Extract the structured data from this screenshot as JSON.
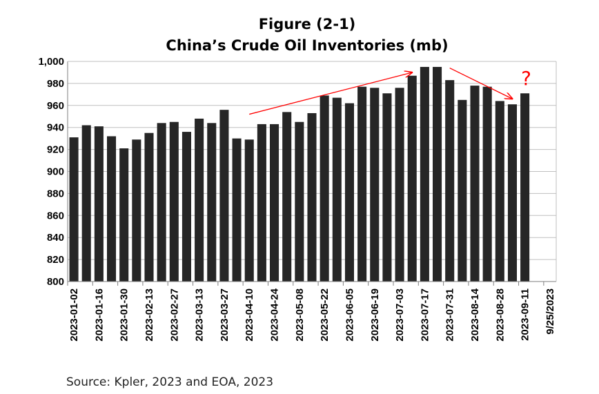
{
  "chart_data": {
    "type": "bar",
    "title": "Figure (2-1)",
    "subtitle": "China’s Crude Oil Inventories (mb)",
    "xlabel": "",
    "ylabel": "",
    "ylim": [
      800,
      1000
    ],
    "yticks": [
      800,
      820,
      840,
      860,
      880,
      900,
      920,
      940,
      960,
      980,
      1000
    ],
    "ytick_labels": [
      "800",
      "820",
      "840",
      "860",
      "880",
      "900",
      "920",
      "940",
      "960",
      "980",
      "1,000"
    ],
    "grid": true,
    "bar_color": "#262626",
    "annotation_color": "#ff0000",
    "categories": [
      "2023-01-02",
      "2023-01-09",
      "2023-01-16",
      "2023-01-23",
      "2023-01-30",
      "2023-02-06",
      "2023-02-13",
      "2023-02-20",
      "2023-02-27",
      "2023-03-06",
      "2023-03-13",
      "2023-03-20",
      "2023-03-27",
      "2023-04-03",
      "2023-04-10",
      "2023-04-17",
      "2023-04-24",
      "2023-05-01",
      "2023-05-08",
      "2023-05-15",
      "2023-05-22",
      "2023-05-29",
      "2023-06-05",
      "2023-06-12",
      "2023-06-19",
      "2023-06-26",
      "2023-07-03",
      "2023-07-10",
      "2023-07-17",
      "2023-07-24",
      "2023-07-31",
      "2023-08-07",
      "2023-08-14",
      "2023-08-21",
      "2023-08-28",
      "2023-09-04",
      "2023-09-11",
      "2023-09-18",
      "2023-09-25"
    ],
    "values": [
      931,
      942,
      941,
      932,
      921,
      929,
      935,
      944,
      945,
      936,
      948,
      944,
      956,
      930,
      929,
      943,
      943,
      954,
      945,
      953,
      969,
      967,
      962,
      977,
      976,
      971,
      976,
      987,
      995,
      995,
      983,
      965,
      978,
      977,
      964,
      961,
      971,
      null,
      null
    ],
    "x_tick_labels": [
      "2023-01-02",
      "2023-01-16",
      "2023-01-30",
      "2023-02-13",
      "2023-02-27",
      "2023-03-13",
      "2023-03-27",
      "2023-04-10",
      "2023-04-24",
      "2023-05-08",
      "2023-05-22",
      "2023-06-05",
      "2023-06-19",
      "2023-07-03",
      "2023-07-17",
      "2023-07-31",
      "2023-08-14",
      "2023-08-28",
      "2023-09-11",
      "9/25/2023"
    ],
    "annotations": [
      {
        "type": "arrow",
        "from": [
          "2023-04-10",
          952
        ],
        "to": [
          "2023-07-10",
          990
        ]
      },
      {
        "type": "arrow",
        "from": [
          "2023-07-31",
          994
        ],
        "to": [
          "2023-09-04",
          966
        ]
      },
      {
        "type": "text",
        "text": "?",
        "at": [
          "2023-09-11",
          980
        ]
      }
    ],
    "source": "Source: Kpler, 2023 and EOA, 2023"
  }
}
